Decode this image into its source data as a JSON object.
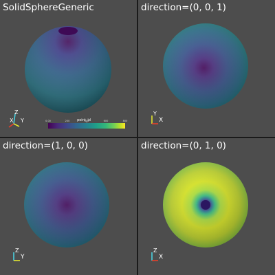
{
  "viewports": [
    {
      "title": "SolidSphereGeneric",
      "axes": [
        "Z",
        "X",
        "Y"
      ]
    },
    {
      "title": "direction=(0, 0, 1)",
      "axes": [
        "Y",
        "X"
      ]
    },
    {
      "title": "direction=(1, 0, 0)",
      "axes": [
        "Z",
        "Y"
      ]
    },
    {
      "title": "direction=(0, 1, 0)",
      "axes": [
        "Z",
        "X"
      ]
    }
  ],
  "colorbar": {
    "title": "point_id",
    "ticks": [
      "0.00",
      "200",
      "400",
      "600",
      "800"
    ]
  },
  "colors": {
    "background": "#4d4d4d",
    "separator": "#1a1a1a",
    "axis_x": "#e8402a",
    "axis_y": "#e6e62e",
    "axis_z": "#4bd1e0"
  }
}
